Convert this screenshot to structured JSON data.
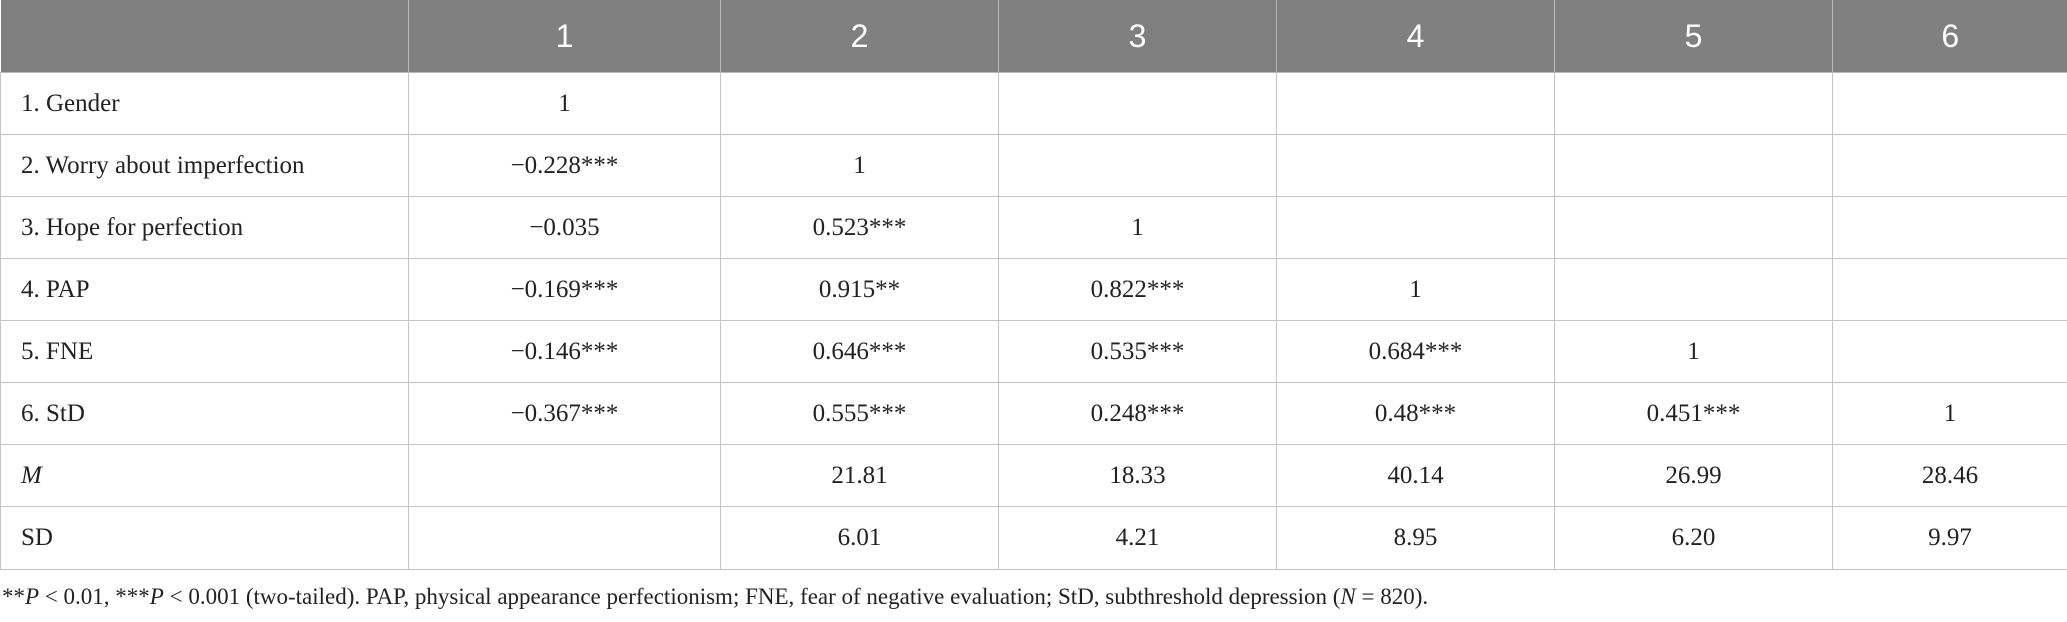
{
  "table": {
    "header": [
      "",
      "1",
      "2",
      "3",
      "4",
      "5",
      "6"
    ],
    "rows": [
      {
        "label": "1. Gender",
        "italic": false,
        "cells": [
          "1",
          "",
          "",
          "",
          "",
          ""
        ]
      },
      {
        "label": "2. Worry about imperfection",
        "italic": false,
        "cells": [
          "−0.228***",
          "1",
          "",
          "",
          "",
          ""
        ]
      },
      {
        "label": "3. Hope for perfection",
        "italic": false,
        "cells": [
          "−0.035",
          "0.523***",
          "1",
          "",
          "",
          ""
        ]
      },
      {
        "label": "4. PAP",
        "italic": false,
        "cells": [
          "−0.169***",
          "0.915**",
          "0.822***",
          "1",
          "",
          ""
        ]
      },
      {
        "label": "5. FNE",
        "italic": false,
        "cells": [
          "−0.146***",
          "0.646***",
          "0.535***",
          "0.684***",
          "1",
          ""
        ]
      },
      {
        "label": "6. StD",
        "italic": false,
        "cells": [
          "−0.367***",
          "0.555***",
          "0.248***",
          "0.48***",
          "0.451***",
          "1"
        ]
      },
      {
        "label": "M",
        "italic": true,
        "cells": [
          "",
          "21.81",
          "18.33",
          "40.14",
          "26.99",
          "28.46"
        ]
      },
      {
        "label": "SD",
        "italic": false,
        "cells": [
          "",
          "6.01",
          "4.21",
          "8.95",
          "6.20",
          "9.97"
        ]
      }
    ]
  },
  "note": {
    "p1_sym": "**",
    "p1_var": "P",
    "p1_rest": " < 0.01, ***",
    "p2_var": "P",
    "p2_rest": " < 0.001 (two-tailed). PAP, physical appearance perfectionism; FNE, fear of negative evaluation; StD, subthreshold depression (",
    "n_var": "N",
    "n_rest": " = 820)."
  },
  "colors": {
    "header_bg": "#808080",
    "header_text": "#ffffff",
    "grid": "#c4c4c4",
    "text": "#222222"
  }
}
